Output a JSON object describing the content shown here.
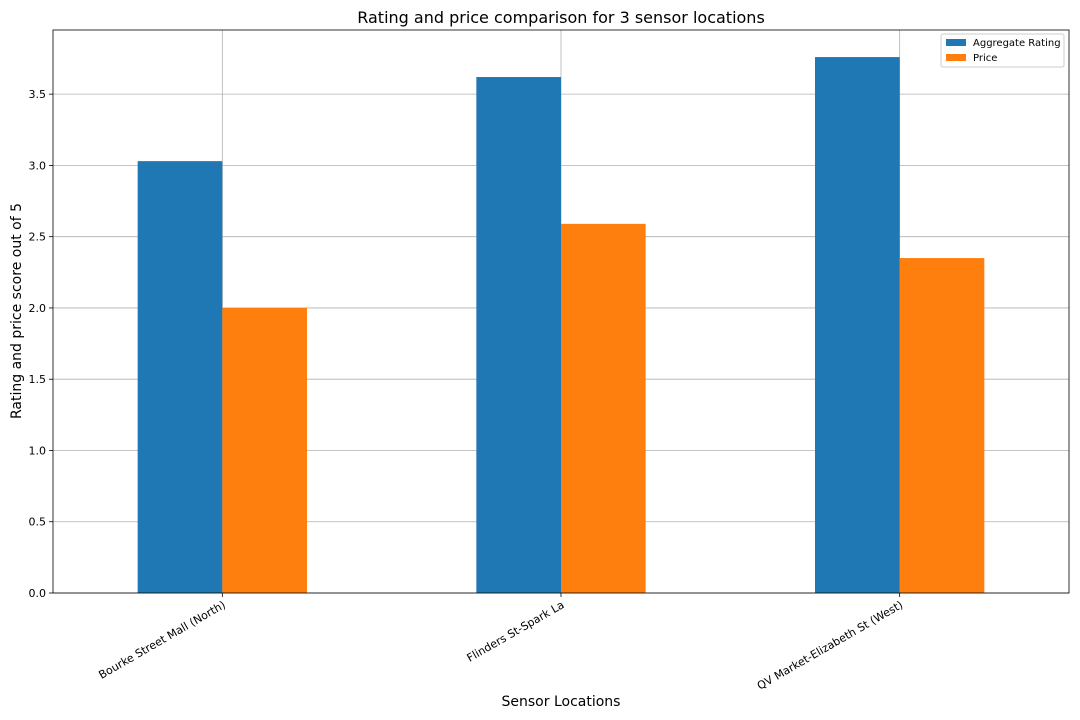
{
  "chart_data": {
    "type": "bar",
    "title": "Rating and price comparison for 3 sensor locations",
    "xlabel": "Sensor Locations",
    "ylabel": "Rating and price score out of 5",
    "categories": [
      "Bourke Street Mall (North)",
      "Flinders St-Spark La",
      "QV Market-Elizabeth St (West)"
    ],
    "series": [
      {
        "name": "Aggregate Rating",
        "values": [
          3.03,
          3.62,
          3.76
        ],
        "color": "#1f77b4"
      },
      {
        "name": "Price",
        "values": [
          2.0,
          2.59,
          2.35
        ],
        "color": "#ff7f0e"
      }
    ],
    "ylim": [
      0,
      3.95
    ],
    "yticks": [
      0.0,
      0.5,
      1.0,
      1.5,
      2.0,
      2.5,
      3.0,
      3.5
    ],
    "grid": true,
    "legend_position": "top-right"
  }
}
